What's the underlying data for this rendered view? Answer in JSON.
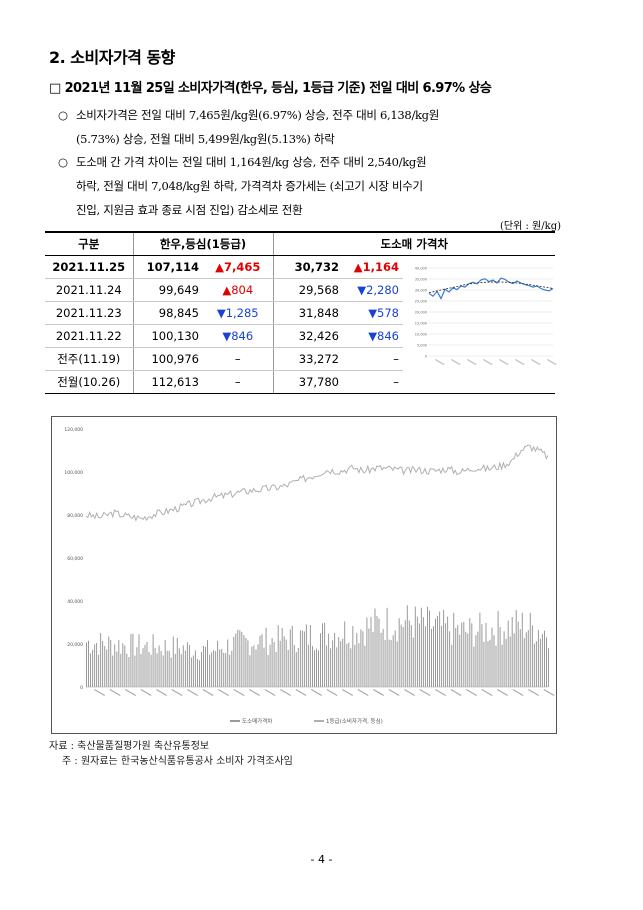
{
  "section_title": "2. 소비자가격 동향",
  "subtitle": "□ 2021년 11월 25일 소비자가격(한우, 등심, 1등급 기준) 전일 대비 6.97% 상승",
  "bullets": [
    {
      "mark": "○",
      "line1": "소비자가격은 전일 대비 7,465원/kg원(6.97%) 상승, 전주 대비 6,138/kg원",
      "line2": "(5.73%) 상승, 전월 대비 5,499원/kg원(5.13%) 하락"
    },
    {
      "mark": "○",
      "line1": "도소매 간 가격 차이는 전일 대비 1,164원/kg 상승, 전주 대비 2,540/kg원",
      "line2": "하락, 전월 대비 7,048/kg원 하락, 가격격차 증가세는 (쇠고기 시장 비수기",
      "line3": "진입, 지원금 효과 종료 시점 진입) 감소세로 전환"
    }
  ],
  "unit_label": "(단위 : 원/kg)",
  "table": {
    "headers": [
      "구분",
      "한우,등심(1등급)",
      "도소매 가격차"
    ],
    "rows": [
      {
        "label": "2021.11.25",
        "price": "107,114",
        "pchg": "▲7,465",
        "pdir": "up",
        "gap": "30,732",
        "gchg": "▲1,164",
        "gdir": "up",
        "bold": true
      },
      {
        "label": "2021.11.24",
        "price": "99,649",
        "pchg": "▲804",
        "pdir": "up",
        "gap": "29,568",
        "gchg": "▼2,280",
        "gdir": "down"
      },
      {
        "label": "2021.11.23",
        "price": "98,845",
        "pchg": "▼1,285",
        "pdir": "down",
        "gap": "31,848",
        "gchg": "▼578",
        "gdir": "down"
      },
      {
        "label": "2021.11.22",
        "price": "100,130",
        "pchg": "▼846",
        "pdir": "down",
        "gap": "32,426",
        "gchg": "▼846",
        "gdir": "down"
      },
      {
        "label": "전주(11.19)",
        "price": "100,976",
        "pchg": "–",
        "pdir": "none",
        "gap": "33,272",
        "gchg": "–",
        "gdir": "none"
      },
      {
        "label": "전월(10.26)",
        "price": "112,613",
        "pchg": "–",
        "pdir": "none",
        "gap": "37,780",
        "gchg": "–",
        "gdir": "none"
      }
    ]
  },
  "chart_data": [
    {
      "type": "line",
      "ylim": [
        0,
        40000
      ],
      "yticks": [
        "40,000",
        "35,000",
        "30,000",
        "25,000",
        "20,000",
        "15,000",
        "10,000",
        "5,000",
        "0"
      ],
      "series": [
        {
          "values": [
            28500,
            27200,
            29400,
            26100,
            30300,
            29100,
            31000,
            30200,
            31800,
            31300,
            32900,
            33500,
            32800,
            34600,
            35100,
            33800,
            34500,
            33200,
            35400,
            34800,
            33600,
            32900,
            34100,
            33200,
            32400,
            32000,
            31300,
            31800,
            30700,
            30000,
            29600,
            30700
          ]
        },
        {
          "values": [
            28800,
            29200,
            29600,
            30000,
            30400,
            30800,
            31200,
            31600,
            32000,
            32400,
            32700,
            33000,
            33200,
            33400,
            33500,
            33600,
            33650,
            33700,
            33650,
            33600,
            33500,
            33350,
            33200,
            33000,
            32750,
            32500,
            32200,
            31900,
            31600,
            31300,
            31000,
            30700
          ]
        }
      ]
    },
    {
      "type": "bar",
      "ylim": [
        0,
        120000
      ],
      "yticks": [
        "120,000",
        "100,000",
        "80,000",
        "60,000",
        "40,000",
        "20,000",
        "0"
      ],
      "legend": [
        "도소매가격차",
        "1등급(소비자가격, 등심)"
      ],
      "line_points": [
        [
          0,
          80000
        ],
        [
          0.03,
          79000
        ],
        [
          0.06,
          81000
        ],
        [
          0.09,
          79500
        ],
        [
          0.12,
          78500
        ],
        [
          0.15,
          80500
        ],
        [
          0.18,
          82000
        ],
        [
          0.21,
          84000
        ],
        [
          0.24,
          86000
        ],
        [
          0.27,
          88000
        ],
        [
          0.3,
          89000
        ],
        [
          0.33,
          90500
        ],
        [
          0.36,
          91500
        ],
        [
          0.4,
          92500
        ],
        [
          0.43,
          93500
        ],
        [
          0.46,
          96000
        ],
        [
          0.5,
          99000
        ],
        [
          0.52,
          101000
        ],
        [
          0.55,
          100500
        ],
        [
          0.58,
          102000
        ],
        [
          0.6,
          100500
        ],
        [
          0.63,
          102000
        ],
        [
          0.66,
          101500
        ],
        [
          0.69,
          100500
        ],
        [
          0.72,
          101000
        ],
        [
          0.75,
          100500
        ],
        [
          0.78,
          101500
        ],
        [
          0.81,
          100000
        ],
        [
          0.84,
          102000
        ],
        [
          0.87,
          101500
        ],
        [
          0.9,
          103000
        ],
        [
          0.92,
          105000
        ],
        [
          0.94,
          110000
        ],
        [
          0.96,
          112000
        ],
        [
          0.98,
          110000
        ],
        [
          1.0,
          107000
        ]
      ],
      "bar_profile": [
        [
          0,
          26000
        ],
        [
          0.1,
          24000
        ],
        [
          0.2,
          23000
        ],
        [
          0.27,
          21000
        ],
        [
          0.33,
          26000
        ],
        [
          0.4,
          27000
        ],
        [
          0.46,
          29000
        ],
        [
          0.52,
          31000
        ],
        [
          0.58,
          33000
        ],
        [
          0.64,
          37000
        ],
        [
          0.7,
          38000
        ],
        [
          0.76,
          35000
        ],
        [
          0.82,
          32000
        ],
        [
          0.88,
          34000
        ],
        [
          0.94,
          36000
        ],
        [
          1.0,
          32000
        ]
      ]
    }
  ],
  "footer": {
    "source_label": "자료 :",
    "source_text": "축산물품질평가원 축산유통정보",
    "note_label": "주 :",
    "note_text": "원자료는 한국농산식품유통공사 소비자 가격조사임"
  },
  "page_number": "- 4 -"
}
